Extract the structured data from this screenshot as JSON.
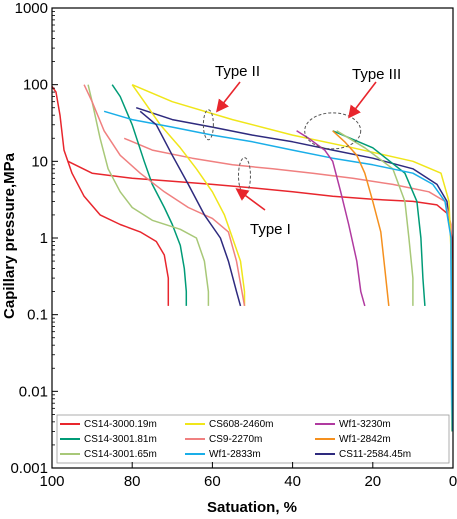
{
  "chart_data": {
    "type": "line",
    "title": "",
    "xlabel": "Satuation, %",
    "ylabel": "Capillary pressure,MPa",
    "x_reversed": true,
    "y_scale": "log",
    "xlim": [
      100,
      0
    ],
    "ylim": [
      0.001,
      1000
    ],
    "x_ticks": [
      "100",
      "80",
      "60",
      "40",
      "20",
      "0"
    ],
    "x_tick_values": [
      100,
      80,
      60,
      40,
      20,
      0
    ],
    "y_ticks": [
      "1000",
      "100",
      "10",
      "1",
      "0.1",
      "0.01",
      "0.001"
    ],
    "y_tick_values": [
      1000,
      100,
      10,
      1,
      0.1,
      0.01,
      0.001
    ],
    "grid": false,
    "legend_position": "bottom",
    "annotations": [
      {
        "text": "Type II",
        "x": 43,
        "y": 300
      },
      {
        "text": "Type III",
        "x": 16,
        "y": 290
      },
      {
        "text": "Type I",
        "x": 40,
        "y": 1.2
      }
    ],
    "series": [
      {
        "name": "CS14-3000.19m",
        "color": "#e8262d",
        "points": [
          [
            100,
            95
          ],
          [
            99,
            80
          ],
          [
            98,
            40
          ],
          [
            97,
            14
          ],
          [
            95,
            7
          ],
          [
            92,
            3.5
          ],
          [
            88,
            2
          ],
          [
            83,
            1.5
          ],
          [
            78,
            1.2
          ],
          [
            74,
            0.9
          ],
          [
            72,
            0.6
          ],
          [
            71,
            0.3
          ],
          [
            71,
            0.13
          ]
        ]
      },
      {
        "name": "CS14-3001.81m",
        "color": "#009b77",
        "points": [
          [
            85,
            100
          ],
          [
            83,
            70
          ],
          [
            80,
            30
          ],
          [
            77,
            10
          ],
          [
            75,
            5
          ],
          [
            72,
            2.5
          ],
          [
            70,
            1.5
          ],
          [
            68,
            0.8
          ],
          [
            67,
            0.4
          ],
          [
            66.5,
            0.2
          ],
          [
            66.5,
            0.13
          ]
        ]
      },
      {
        "name": "CS14-3001.65m",
        "color": "#a8c878",
        "points": [
          [
            91,
            100
          ],
          [
            90,
            60
          ],
          [
            88,
            20
          ],
          [
            86,
            8
          ],
          [
            83,
            4
          ],
          [
            80,
            2.5
          ],
          [
            75,
            1.7
          ],
          [
            68,
            1.3
          ],
          [
            64,
            1.0
          ],
          [
            62,
            0.5
          ],
          [
            61,
            0.2
          ],
          [
            61,
            0.13
          ]
        ]
      },
      {
        "name": "CS608-2460m",
        "color": "#f0e61a",
        "points": [
          [
            80,
            100
          ],
          [
            77,
            60
          ],
          [
            73,
            30
          ],
          [
            68,
            15
          ],
          [
            64,
            8
          ],
          [
            60,
            4
          ],
          [
            57,
            2
          ],
          [
            55,
            1
          ],
          [
            53,
            0.5
          ],
          [
            52,
            0.2
          ],
          [
            52,
            0.13
          ]
        ]
      },
      {
        "name": "CS9-2270m",
        "color": "#f08080",
        "points": [
          [
            92,
            100
          ],
          [
            90,
            60
          ],
          [
            87,
            25
          ],
          [
            83,
            12
          ],
          [
            78,
            7
          ],
          [
            72,
            4
          ],
          [
            66,
            2.5
          ],
          [
            60,
            1.8
          ],
          [
            56,
            1.2
          ],
          [
            54,
            0.5
          ],
          [
            52,
            0.13
          ]
        ]
      },
      {
        "name": "Wf1-2833m",
        "color": "#1aaee8",
        "points": [
          [
            87,
            45
          ],
          [
            80,
            35
          ],
          [
            70,
            28
          ],
          [
            60,
            22
          ],
          [
            50,
            18
          ],
          [
            40,
            14
          ],
          [
            30,
            11
          ],
          [
            20,
            9
          ],
          [
            10,
            7
          ],
          [
            5,
            5
          ],
          [
            2,
            3
          ],
          [
            0.5,
            1
          ],
          [
            0.3,
            0.01
          ],
          [
            0.2,
            0.003
          ]
        ]
      },
      {
        "name": "Wf1-3230m",
        "color": "#b03aa0",
        "points": [
          [
            39,
            25
          ],
          [
            36,
            20
          ],
          [
            32,
            14
          ],
          [
            30,
            10
          ],
          [
            28,
            4
          ],
          [
            26,
            1.5
          ],
          [
            24,
            0.5
          ],
          [
            23,
            0.2
          ],
          [
            22,
            0.13
          ]
        ]
      },
      {
        "name": "Wf1-2842m",
        "color": "#f5901e",
        "points": [
          [
            30,
            25
          ],
          [
            27,
            18
          ],
          [
            24,
            12
          ],
          [
            22,
            7
          ],
          [
            20,
            3
          ],
          [
            18,
            1.2
          ],
          [
            17,
            0.4
          ],
          [
            16,
            0.13
          ]
        ]
      },
      {
        "name": "CS11-2584.45m",
        "color": "#2e2a7e",
        "points": [
          [
            78,
            45
          ],
          [
            74,
            30
          ],
          [
            70,
            12
          ],
          [
            66,
            5
          ],
          [
            62,
            2
          ],
          [
            58,
            1
          ],
          [
            56,
            0.5
          ],
          [
            54,
            0.2
          ],
          [
            53,
            0.13
          ]
        ]
      }
    ],
    "extra_curves": [
      {
        "color": "#2e2a7e",
        "points": [
          [
            79,
            50
          ],
          [
            70,
            35
          ],
          [
            60,
            28
          ],
          [
            50,
            22
          ],
          [
            40,
            18
          ],
          [
            30,
            14
          ],
          [
            20,
            11
          ],
          [
            10,
            8
          ],
          [
            4,
            5
          ],
          [
            1.5,
            3
          ],
          [
            0.5,
            1
          ],
          [
            0.3,
            0.003
          ]
        ]
      },
      {
        "color": "#e8262d",
        "points": [
          [
            96,
            10
          ],
          [
            90,
            7
          ],
          [
            80,
            6
          ],
          [
            70,
            5.5
          ],
          [
            60,
            5
          ],
          [
            50,
            4.5
          ],
          [
            40,
            4
          ],
          [
            30,
            3.5
          ],
          [
            20,
            3.2
          ],
          [
            10,
            3
          ],
          [
            4,
            2.7
          ],
          [
            1,
            2
          ],
          [
            0.3,
            1
          ],
          [
            0.2,
            0.003
          ]
        ]
      },
      {
        "color": "#f08080",
        "points": [
          [
            82,
            20
          ],
          [
            75,
            14
          ],
          [
            65,
            11
          ],
          [
            55,
            9
          ],
          [
            45,
            8
          ],
          [
            35,
            7
          ],
          [
            25,
            6
          ],
          [
            15,
            5
          ],
          [
            6,
            4
          ],
          [
            2,
            3
          ],
          [
            0.5,
            1.5
          ],
          [
            0.2,
            0.003
          ]
        ]
      },
      {
        "color": "#f0e61a",
        "points": [
          [
            80,
            100
          ],
          [
            70,
            60
          ],
          [
            55,
            35
          ],
          [
            40,
            22
          ],
          [
            25,
            15
          ],
          [
            10,
            10
          ],
          [
            3,
            7
          ],
          [
            1,
            3
          ],
          [
            0.4,
            0.5
          ],
          [
            0.3,
            0.003
          ]
        ]
      },
      {
        "color": "#009b77",
        "points": [
          [
            30,
            25
          ],
          [
            20,
            15
          ],
          [
            12,
            7
          ],
          [
            9,
            3
          ],
          [
            8,
            1
          ],
          [
            7.5,
            0.3
          ],
          [
            7,
            0.13
          ],
          [
            7,
            0.13
          ]
        ]
      },
      {
        "color": "#a8c878",
        "points": [
          [
            29,
            25
          ],
          [
            22,
            15
          ],
          [
            15,
            8
          ],
          [
            12,
            3
          ],
          [
            11,
            1
          ],
          [
            10,
            0.3
          ],
          [
            10,
            0.13
          ]
        ]
      }
    ]
  },
  "legend": {
    "entries": [
      {
        "name": "CS14-3000.19m",
        "color": "#e8262d"
      },
      {
        "name": "CS608-2460m",
        "color": "#f0e61a"
      },
      {
        "name": "Wf1-3230m",
        "color": "#b03aa0"
      },
      {
        "name": "CS14-3001.81m",
        "color": "#009b77"
      },
      {
        "name": "CS9-2270m",
        "color": "#f08080"
      },
      {
        "name": "Wf1-2842m",
        "color": "#f5901e"
      },
      {
        "name": "CS14-3001.65m",
        "color": "#a8c878"
      },
      {
        "name": "Wf1-2833m",
        "color": "#1aaee8"
      },
      {
        "name": "CS11-2584.45m",
        "color": "#2e2a7e"
      }
    ]
  }
}
